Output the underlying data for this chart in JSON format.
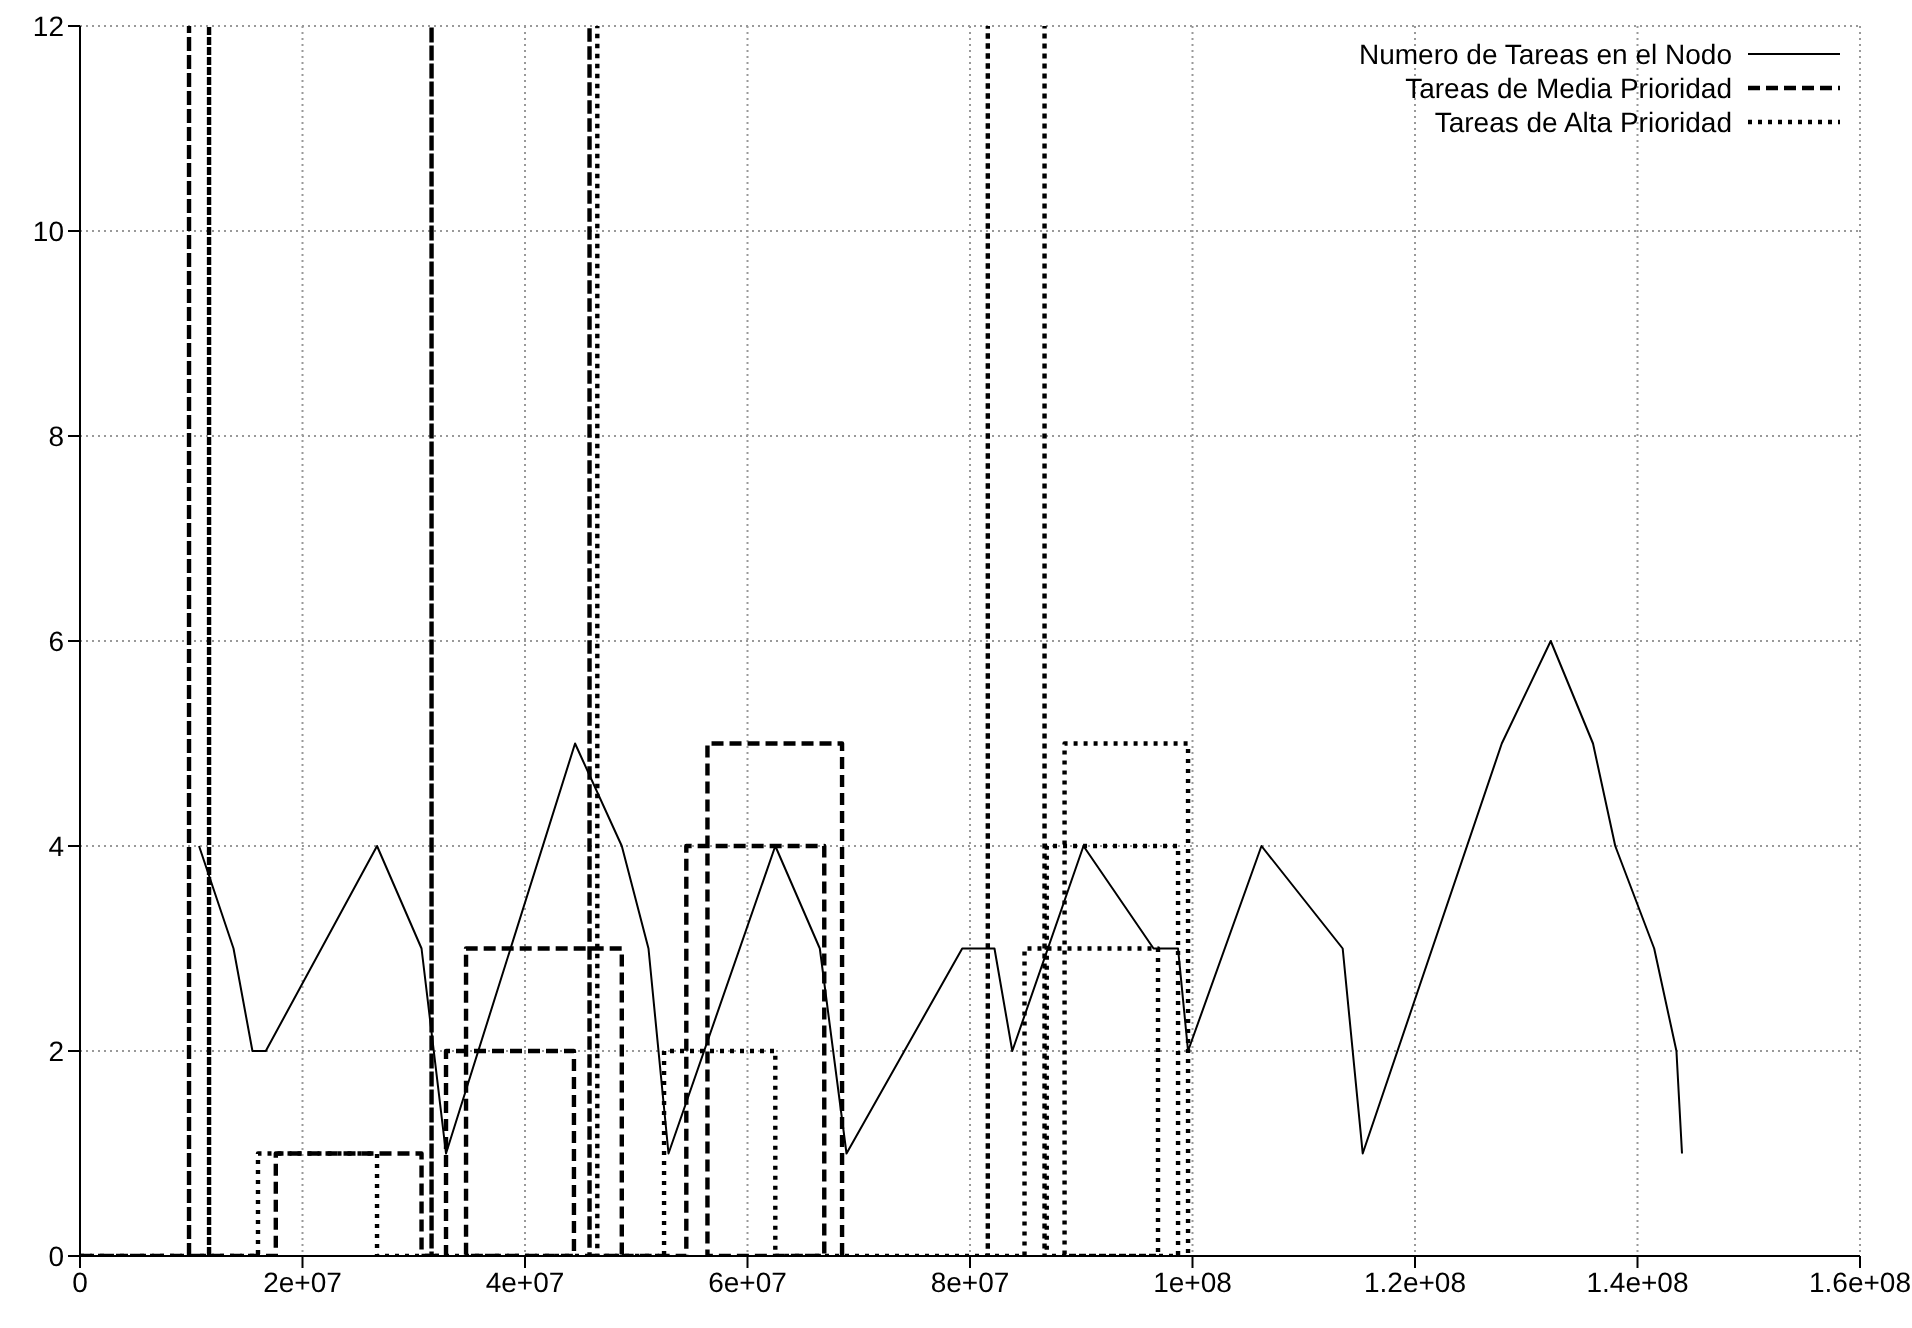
{
  "chart_data": {
    "type": "line",
    "grid": true,
    "legend": "top right",
    "marker": "none",
    "xlim": [
      0,
      160000000
    ],
    "xticks": [
      0,
      {
        "value": 20000000,
        "label": "2e+07"
      },
      {
        "value": 40000000,
        "label": "4e+07"
      },
      {
        "value": 60000000,
        "label": "6e+07"
      },
      {
        "value": 80000000,
        "label": "8e+07"
      },
      {
        "value": 100000000,
        "label": "1e+08"
      },
      {
        "value": 120000000,
        "label": "1.2e+08"
      },
      {
        "value": 140000000,
        "label": "1.4e+08"
      },
      {
        "value": 160000000,
        "label": "1.6e+08"
      }
    ],
    "ylim": [
      0,
      12
    ],
    "yticks": [
      0,
      2,
      4,
      6,
      8,
      10,
      12
    ],
    "series": [
      {
        "name": "Numero de Tareas en el Nodo",
        "color": "#000000",
        "line_style": "solid",
        "x": [
          10700000,
          13800000,
          15500000,
          16700000,
          26700000,
          30700000,
          32900000,
          44500000,
          48700000,
          51100000,
          52900000,
          62500000,
          66500000,
          68900000,
          79300000,
          82200000,
          83800000,
          90200000,
          96500000,
          98700000,
          99600000,
          106200000,
          113500000,
          115300000,
          127800000,
          132200000,
          136000000,
          138000000,
          141500000,
          143500000,
          144000000
        ],
        "values": [
          4,
          3,
          2,
          2,
          4,
          3,
          1,
          5,
          4,
          3,
          1,
          4,
          3,
          1,
          3,
          3,
          2,
          4,
          3,
          3,
          2,
          4,
          3,
          1,
          5,
          6,
          5,
          4,
          3,
          2,
          1
        ]
      },
      {
        "name": "Tareas de Media Prioridad",
        "color": "#000000",
        "line_style": "dashed",
        "x": [
          0,
          9800000,
          9800000,
          9800000,
          17600000,
          17600000,
          30700000,
          30700000,
          31600000,
          31600000,
          31600000,
          32900000,
          32900000,
          44400000,
          44400000,
          34700000,
          34700000,
          48700000,
          48700000,
          45800000,
          45800000,
          45800000,
          54500000,
          54500000,
          66900000,
          66900000,
          56400000,
          56400000,
          68500000,
          68500000
        ],
        "values": [
          0,
          0,
          12,
          0,
          0,
          1,
          1,
          0,
          0,
          12,
          0,
          0,
          2,
          2,
          0,
          0,
          3,
          3,
          0,
          0,
          12,
          0,
          0,
          4,
          4,
          0,
          0,
          5,
          5,
          0
        ]
      },
      {
        "name": "Tareas de Alta Prioridad",
        "color": "#000000",
        "line_style": "dotted",
        "x": [
          0,
          11600000,
          11600000,
          11600000,
          16000000,
          16000000,
          26700000,
          26700000,
          46500000,
          46500000,
          46500000,
          52500000,
          52500000,
          62500000,
          62500000,
          81600000,
          81600000,
          81600000,
          84900000,
          84900000,
          96900000,
          96900000,
          86700000,
          86700000,
          86700000,
          86900000,
          86900000,
          98700000,
          98700000,
          88500000,
          88500000,
          99600000,
          99600000
        ],
        "values": [
          0,
          0,
          12,
          0,
          0,
          1,
          1,
          0,
          0,
          12,
          0,
          0,
          2,
          2,
          0,
          0,
          12,
          0,
          0,
          3,
          3,
          0,
          0,
          12,
          0,
          0,
          4,
          4,
          0,
          0,
          5,
          5,
          0
        ]
      }
    ]
  }
}
